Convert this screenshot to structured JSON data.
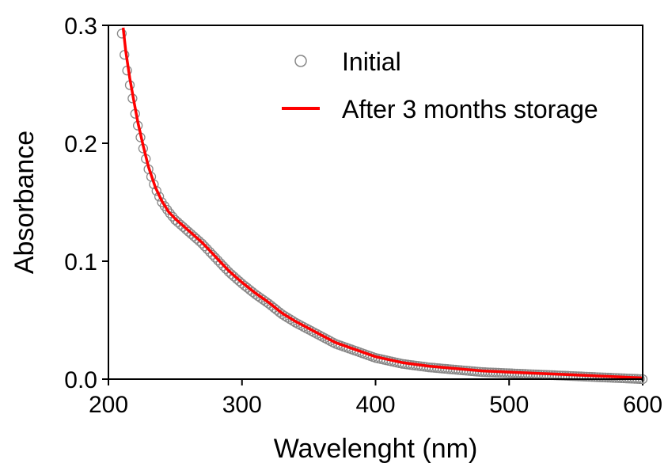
{
  "chart_data": {
    "type": "scatter",
    "xlabel": "Wavelenght (nm)",
    "ylabel": "Absorbance",
    "xlim": [
      200,
      600
    ],
    "ylim": [
      0.0,
      0.3
    ],
    "x_ticks": [
      200,
      300,
      400,
      500,
      600
    ],
    "x_tick_labels": [
      "200",
      "300",
      "400",
      "500",
      "600"
    ],
    "y_ticks": [
      0.0,
      0.1,
      0.2,
      0.3
    ],
    "y_tick_labels": [
      "0.0",
      "0.1",
      "0.2",
      "0.3"
    ],
    "grid": false,
    "legend_position": "top-right",
    "series": [
      {
        "name": "Initial",
        "style": "open-circle",
        "color": "#888888",
        "x": [
          210,
          212,
          215,
          218,
          220,
          225,
          230,
          235,
          240,
          245,
          250,
          255,
          260,
          265,
          270,
          275,
          280,
          285,
          290,
          295,
          300,
          310,
          320,
          330,
          340,
          350,
          360,
          370,
          380,
          390,
          400,
          420,
          440,
          460,
          480,
          500,
          520,
          540,
          560,
          580,
          600
        ],
        "y": [
          0.293,
          0.275,
          0.255,
          0.238,
          0.225,
          0.2,
          0.178,
          0.162,
          0.15,
          0.142,
          0.135,
          0.13,
          0.125,
          0.12,
          0.115,
          0.109,
          0.103,
          0.097,
          0.091,
          0.086,
          0.081,
          0.072,
          0.064,
          0.055,
          0.048,
          0.042,
          0.036,
          0.03,
          0.026,
          0.022,
          0.018,
          0.013,
          0.01,
          0.008,
          0.006,
          0.005,
          0.004,
          0.003,
          0.002,
          0.001,
          0.0
        ]
      },
      {
        "name": "After 3 months storage",
        "style": "line",
        "color": "#ff0000",
        "x": [
          211,
          213,
          216,
          219,
          222,
          226,
          230,
          235,
          240,
          245,
          250,
          255,
          260,
          265,
          270,
          275,
          280,
          285,
          290,
          295,
          300,
          310,
          320,
          330,
          340,
          350,
          360,
          370,
          380,
          390,
          400,
          420,
          440,
          460,
          480,
          500,
          520,
          540,
          560,
          580,
          600
        ],
        "y": [
          0.298,
          0.278,
          0.255,
          0.236,
          0.218,
          0.198,
          0.18,
          0.163,
          0.151,
          0.142,
          0.136,
          0.131,
          0.126,
          0.121,
          0.116,
          0.11,
          0.104,
          0.098,
          0.092,
          0.087,
          0.082,
          0.073,
          0.065,
          0.056,
          0.049,
          0.043,
          0.037,
          0.031,
          0.027,
          0.023,
          0.019,
          0.014,
          0.011,
          0.009,
          0.007,
          0.006,
          0.005,
          0.004,
          0.003,
          0.002,
          0.001
        ]
      }
    ]
  }
}
